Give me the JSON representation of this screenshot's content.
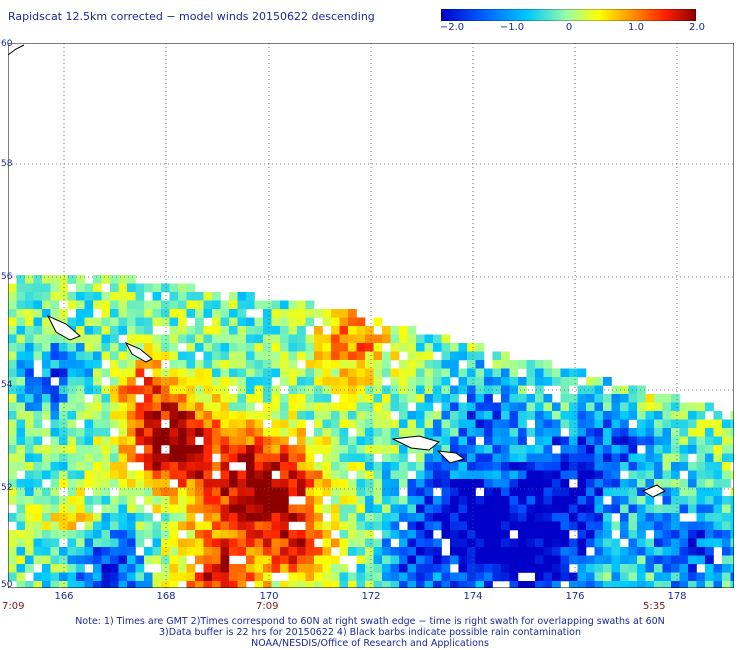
{
  "title": "Rapidscat 12.5km corrected − model winds 20150622 descending",
  "colorbar": {
    "ticks": [
      "−2.0",
      "−1.0",
      "0",
      "1.0",
      "2.0"
    ],
    "range": [
      -2.0,
      2.0
    ],
    "colors": [
      "#0000c8",
      "#0050ff",
      "#00c8ff",
      "#a0ffa0",
      "#ffff00",
      "#ff9000",
      "#ff2000",
      "#8c0000"
    ]
  },
  "map": {
    "lat_labels": [
      "60",
      "58",
      "56",
      "54",
      "52",
      "50"
    ],
    "lon_labels": [
      "166",
      "168",
      "170",
      "172",
      "174",
      "176",
      "178"
    ],
    "lon_range": [
      165.0,
      179.0
    ],
    "lat_range": [
      50.0,
      60.0
    ],
    "grid": "dotted",
    "swath_times": [
      "7:09",
      "7:09",
      "5:35"
    ]
  },
  "notes": [
    "Note: 1) Times are GMT 2)Times correspond to 60N at right swath edge − time is right swath for overlapping swaths at 60N",
    "3)Data buffer is 22 hrs for 20150622 4) Black barbs indicate possible rain contamination",
    "NOAA/NESDIS/Office of Research and Applications"
  ]
}
